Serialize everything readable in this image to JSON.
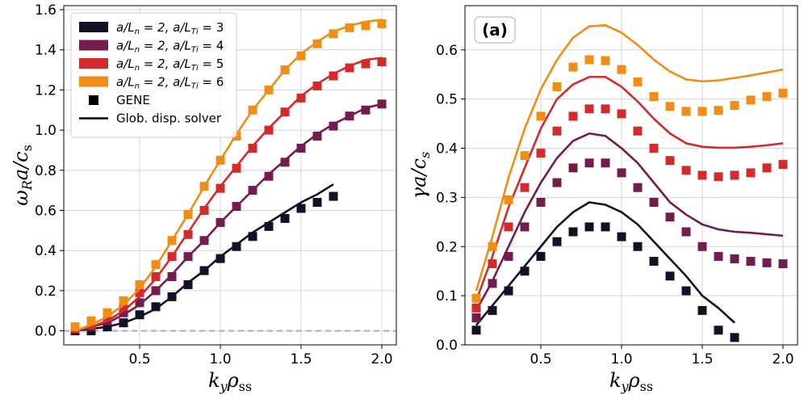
{
  "chart_data": [
    {
      "type": "line",
      "title": "",
      "xlabel": "k_y ρ_ss",
      "ylabel": "ω_R a / c_s",
      "xlabel_parts": {
        "main": "k",
        "sub1": "y",
        "rho": "ρ",
        "sub2": "ss"
      },
      "ylabel_parts": {
        "main": "ω",
        "sub1": "R",
        "rest": "a/c",
        "sub2": "s"
      },
      "xlim": [
        0.03,
        2.09
      ],
      "ylim": [
        -0.07,
        1.62
      ],
      "xticks": [
        0.5,
        1.0,
        1.5,
        2.0
      ],
      "xtick_labels": [
        "0.5",
        "1.0",
        "1.5",
        "2.0"
      ],
      "yticks": [
        0.0,
        0.2,
        0.4,
        0.6,
        0.8,
        1.0,
        1.2,
        1.4,
        1.6
      ],
      "ytick_labels": [
        "0.0",
        "0.2",
        "0.4",
        "0.6",
        "0.8",
        "1.0",
        "1.2",
        "1.4",
        "1.6"
      ],
      "grid": true,
      "legend_position": "top-left",
      "reference_line": {
        "y": 0.0,
        "style": "dashed",
        "color": "#bbbbbb"
      },
      "series": [
        {
          "name": "a/L_n = 2, a/L_Ti = 3",
          "label_parts": [
            "a/L",
            "n",
            " = 2, a/L",
            "Ti",
            " = 3"
          ],
          "color": "#170f26",
          "line_x": [
            0.1,
            0.2,
            0.3,
            0.4,
            0.5,
            0.6,
            0.7,
            0.8,
            0.9,
            1.0,
            1.1,
            1.2,
            1.3,
            1.4,
            1.5,
            1.6,
            1.7
          ],
          "line_y": [
            0.0,
            0.01,
            0.02,
            0.04,
            0.07,
            0.11,
            0.17,
            0.24,
            0.3,
            0.37,
            0.43,
            0.49,
            0.54,
            0.59,
            0.64,
            0.68,
            0.73
          ],
          "gene_x": [
            0.1,
            0.2,
            0.3,
            0.4,
            0.5,
            0.6,
            0.7,
            0.8,
            0.9,
            1.0,
            1.1,
            1.2,
            1.3,
            1.4,
            1.5,
            1.6,
            1.7
          ],
          "gene_y": [
            0.0,
            0.0,
            0.02,
            0.04,
            0.08,
            0.12,
            0.17,
            0.23,
            0.3,
            0.36,
            0.42,
            0.47,
            0.52,
            0.56,
            0.61,
            0.64,
            0.67
          ]
        },
        {
          "name": "a/L_n = 2, a/L_Ti = 4",
          "label_parts": [
            "a/L",
            "n",
            " = 2, a/L",
            "Ti",
            " = 4"
          ],
          "color": "#731c4e",
          "line_x": [
            0.1,
            0.2,
            0.3,
            0.4,
            0.5,
            0.6,
            0.7,
            0.8,
            0.9,
            1.0,
            1.1,
            1.2,
            1.3,
            1.4,
            1.5,
            1.6,
            1.7,
            1.8,
            1.9,
            2.0
          ],
          "line_y": [
            0.0,
            0.02,
            0.04,
            0.08,
            0.13,
            0.2,
            0.28,
            0.37,
            0.45,
            0.54,
            0.62,
            0.7,
            0.78,
            0.85,
            0.92,
            0.98,
            1.03,
            1.07,
            1.11,
            1.13
          ],
          "gene_x": [
            0.1,
            0.2,
            0.3,
            0.4,
            0.5,
            0.6,
            0.7,
            0.8,
            0.9,
            1.0,
            1.1,
            1.2,
            1.3,
            1.4,
            1.5,
            1.6,
            1.7,
            1.8,
            1.9,
            2.0
          ],
          "gene_y": [
            0.01,
            0.02,
            0.05,
            0.09,
            0.14,
            0.2,
            0.27,
            0.37,
            0.45,
            0.54,
            0.62,
            0.7,
            0.77,
            0.84,
            0.91,
            0.97,
            1.02,
            1.07,
            1.1,
            1.13
          ]
        },
        {
          "name": "a/L_n = 2, a/L_Ti = 5",
          "label_parts": [
            "a/L",
            "n",
            " = 2, a/L",
            "Ti",
            " = 5"
          ],
          "color": "#d32a2b",
          "line_x": [
            0.1,
            0.2,
            0.3,
            0.4,
            0.5,
            0.6,
            0.7,
            0.8,
            0.9,
            1.0,
            1.1,
            1.2,
            1.3,
            1.4,
            1.5,
            1.6,
            1.7,
            1.8,
            1.9,
            2.0
          ],
          "line_y": [
            0.0,
            0.02,
            0.05,
            0.1,
            0.17,
            0.26,
            0.37,
            0.49,
            0.61,
            0.72,
            0.82,
            0.92,
            1.01,
            1.09,
            1.17,
            1.23,
            1.28,
            1.32,
            1.35,
            1.36
          ],
          "gene_x": [
            0.1,
            0.2,
            0.3,
            0.4,
            0.5,
            0.6,
            0.7,
            0.8,
            0.9,
            1.0,
            1.1,
            1.2,
            1.3,
            1.4,
            1.5,
            1.6,
            1.7,
            1.8,
            1.9,
            2.0
          ],
          "gene_y": [
            0.01,
            0.03,
            0.07,
            0.12,
            0.19,
            0.27,
            0.37,
            0.48,
            0.6,
            0.71,
            0.81,
            0.91,
            1.0,
            1.09,
            1.16,
            1.22,
            1.27,
            1.31,
            1.33,
            1.34
          ]
        },
        {
          "name": "a/L_n = 2, a/L_Ti = 6",
          "label_parts": [
            "a/L",
            "n",
            " = 2, a/L",
            "Ti",
            " = 6"
          ],
          "color": "#f08d14",
          "line_x": [
            0.1,
            0.2,
            0.3,
            0.4,
            0.5,
            0.6,
            0.7,
            0.8,
            0.9,
            1.0,
            1.1,
            1.2,
            1.3,
            1.4,
            1.5,
            1.6,
            1.7,
            1.8,
            1.9,
            2.0
          ],
          "line_y": [
            0.0,
            0.03,
            0.07,
            0.13,
            0.21,
            0.32,
            0.45,
            0.58,
            0.72,
            0.85,
            0.98,
            1.1,
            1.2,
            1.3,
            1.38,
            1.44,
            1.49,
            1.52,
            1.54,
            1.55
          ],
          "gene_x": [
            0.1,
            0.2,
            0.3,
            0.4,
            0.5,
            0.6,
            0.7,
            0.8,
            0.9,
            1.0,
            1.1,
            1.2,
            1.3,
            1.4,
            1.5,
            1.6,
            1.7,
            1.8,
            1.9,
            2.0
          ],
          "gene_y": [
            0.02,
            0.05,
            0.09,
            0.15,
            0.23,
            0.33,
            0.45,
            0.58,
            0.72,
            0.85,
            0.97,
            1.1,
            1.2,
            1.3,
            1.37,
            1.43,
            1.48,
            1.51,
            1.52,
            1.53
          ]
        }
      ],
      "legend_extra": [
        {
          "label": "GENE",
          "marker": "square"
        },
        {
          "label": "Glob. disp. solver",
          "marker": "line"
        }
      ]
    },
    {
      "type": "line",
      "title": "",
      "panel_label": "(a)",
      "xlabel": "k_y ρ_ss",
      "ylabel": "γ a / c_s",
      "xlabel_parts": {
        "main": "k",
        "sub1": "y",
        "rho": "ρ",
        "sub2": "ss"
      },
      "ylabel_parts": {
        "main": "γa/c",
        "sub1": "s"
      },
      "xlim": [
        0.03,
        2.09
      ],
      "ylim": [
        0.0,
        0.69
      ],
      "xticks": [
        0.5,
        1.0,
        1.5,
        2.0
      ],
      "xtick_labels": [
        "0.5",
        "1.0",
        "1.5",
        "2.0"
      ],
      "yticks": [
        0.0,
        0.1,
        0.2,
        0.3,
        0.4,
        0.5,
        0.6
      ],
      "ytick_labels": [
        "0.0",
        "0.1",
        "0.2",
        "0.3",
        "0.4",
        "0.5",
        "0.6"
      ],
      "grid": true,
      "series": [
        {
          "name": "a/L_Ti = 3",
          "color": "#170f26",
          "line_x": [
            0.1,
            0.2,
            0.3,
            0.4,
            0.5,
            0.6,
            0.7,
            0.8,
            0.9,
            1.0,
            1.1,
            1.2,
            1.3,
            1.4,
            1.5,
            1.6,
            1.7
          ],
          "line_y": [
            0.04,
            0.08,
            0.12,
            0.16,
            0.2,
            0.24,
            0.27,
            0.29,
            0.285,
            0.27,
            0.245,
            0.21,
            0.175,
            0.14,
            0.1,
            0.075,
            0.045
          ],
          "gene_x": [
            0.1,
            0.2,
            0.3,
            0.4,
            0.5,
            0.6,
            0.7,
            0.8,
            0.9,
            1.0,
            1.1,
            1.2,
            1.3,
            1.4,
            1.5,
            1.6,
            1.7
          ],
          "gene_y": [
            0.03,
            0.07,
            0.11,
            0.15,
            0.18,
            0.21,
            0.23,
            0.24,
            0.24,
            0.22,
            0.2,
            0.17,
            0.14,
            0.11,
            0.07,
            0.03,
            0.015
          ]
        },
        {
          "name": "a/L_Ti = 4",
          "color": "#731c4e",
          "line_x": [
            0.1,
            0.2,
            0.3,
            0.4,
            0.5,
            0.6,
            0.7,
            0.8,
            0.9,
            1.0,
            1.1,
            1.2,
            1.3,
            1.4,
            1.5,
            1.6,
            1.7,
            1.8,
            1.9,
            2.0
          ],
          "line_y": [
            0.07,
            0.13,
            0.2,
            0.27,
            0.33,
            0.38,
            0.415,
            0.43,
            0.425,
            0.4,
            0.37,
            0.33,
            0.29,
            0.265,
            0.245,
            0.235,
            0.23,
            0.228,
            0.225,
            0.222
          ],
          "gene_x": [
            0.1,
            0.2,
            0.3,
            0.4,
            0.5,
            0.6,
            0.7,
            0.8,
            0.9,
            1.0,
            1.1,
            1.2,
            1.3,
            1.4,
            1.5,
            1.6,
            1.7,
            1.8,
            1.9,
            2.0
          ],
          "gene_y": [
            0.055,
            0.125,
            0.18,
            0.24,
            0.29,
            0.33,
            0.36,
            0.37,
            0.37,
            0.35,
            0.32,
            0.29,
            0.26,
            0.23,
            0.2,
            0.18,
            0.175,
            0.17,
            0.167,
            0.165
          ]
        },
        {
          "name": "a/L_Ti = 5",
          "color": "#d32a2b",
          "line_x": [
            0.1,
            0.2,
            0.3,
            0.4,
            0.5,
            0.6,
            0.7,
            0.8,
            0.9,
            1.0,
            1.1,
            1.2,
            1.3,
            1.4,
            1.5,
            1.6,
            1.7,
            1.8,
            1.9,
            2.0
          ],
          "line_y": [
            0.09,
            0.18,
            0.28,
            0.36,
            0.44,
            0.5,
            0.53,
            0.545,
            0.545,
            0.525,
            0.495,
            0.46,
            0.43,
            0.41,
            0.403,
            0.401,
            0.401,
            0.403,
            0.406,
            0.41
          ],
          "gene_x": [
            0.1,
            0.2,
            0.3,
            0.4,
            0.5,
            0.6,
            0.7,
            0.8,
            0.9,
            1.0,
            1.1,
            1.2,
            1.3,
            1.4,
            1.5,
            1.6,
            1.7,
            1.8,
            1.9,
            2.0
          ],
          "gene_y": [
            0.075,
            0.165,
            0.24,
            0.32,
            0.39,
            0.435,
            0.465,
            0.48,
            0.48,
            0.47,
            0.435,
            0.4,
            0.375,
            0.355,
            0.345,
            0.342,
            0.345,
            0.35,
            0.36,
            0.367
          ]
        },
        {
          "name": "a/L_Ti = 6",
          "color": "#f08d14",
          "line_x": [
            0.1,
            0.2,
            0.3,
            0.4,
            0.5,
            0.6,
            0.7,
            0.8,
            0.9,
            1.0,
            1.1,
            1.2,
            1.3,
            1.4,
            1.5,
            1.6,
            1.7,
            1.8,
            1.9,
            2.0
          ],
          "line_y": [
            0.11,
            0.22,
            0.34,
            0.44,
            0.52,
            0.58,
            0.625,
            0.648,
            0.65,
            0.635,
            0.61,
            0.58,
            0.556,
            0.54,
            0.536,
            0.538,
            0.543,
            0.548,
            0.554,
            0.56
          ],
          "gene_x": [
            0.1,
            0.2,
            0.3,
            0.4,
            0.5,
            0.6,
            0.7,
            0.8,
            0.9,
            1.0,
            1.1,
            1.2,
            1.3,
            1.4,
            1.5,
            1.6,
            1.7,
            1.8,
            1.9,
            2.0
          ],
          "gene_y": [
            0.095,
            0.2,
            0.295,
            0.385,
            0.465,
            0.525,
            0.565,
            0.58,
            0.578,
            0.56,
            0.535,
            0.505,
            0.485,
            0.475,
            0.475,
            0.477,
            0.487,
            0.498,
            0.505,
            0.512
          ]
        }
      ]
    }
  ]
}
